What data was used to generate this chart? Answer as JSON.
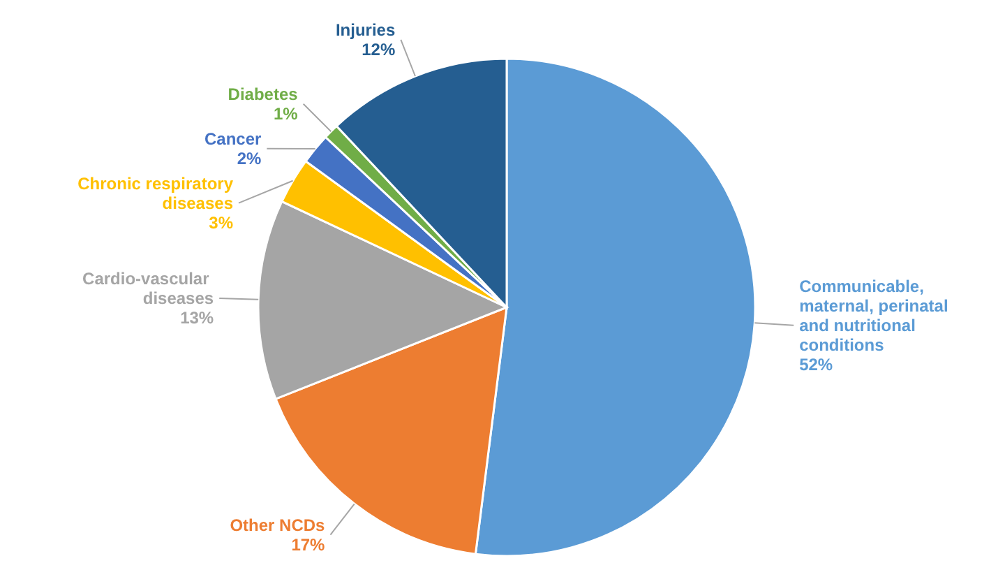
{
  "chart_data": {
    "type": "pie",
    "categories": [
      "Communicable, maternal, perinatal and nutritional conditions",
      "Other NCDs",
      "Cardio-vascular  diseases",
      "Chronic respiratory diseases",
      "Cancer",
      "Diabetes",
      "Injuries"
    ],
    "values": [
      52,
      17,
      13,
      3,
      2,
      1,
      12
    ],
    "value_labels": [
      "52%",
      "17%",
      "13%",
      "3%",
      "2%",
      "1%",
      "12%"
    ],
    "colors": [
      "#5b9bd5",
      "#ed7d31",
      "#a5a5a5",
      "#ffc000",
      "#4472c4",
      "#70ad47",
      "#255e91"
    ]
  }
}
